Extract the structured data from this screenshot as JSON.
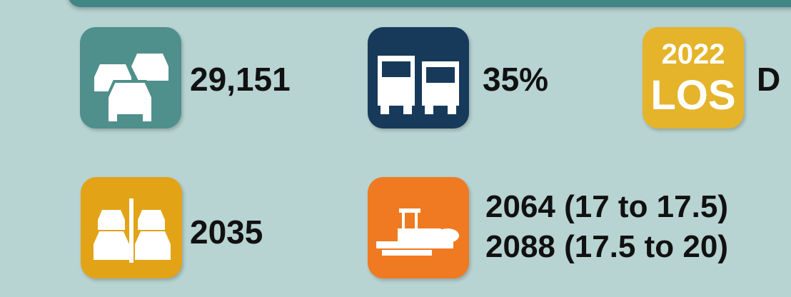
{
  "items": [
    {
      "value": "29,151"
    },
    {
      "value": "35%"
    },
    {
      "badge": [
        "2022",
        "LOS"
      ],
      "value": "D"
    },
    {
      "value": "2035"
    },
    {
      "lines": [
        "2064 (17 to 17.5)",
        "2088 (17.5 to 20)"
      ]
    }
  ]
}
